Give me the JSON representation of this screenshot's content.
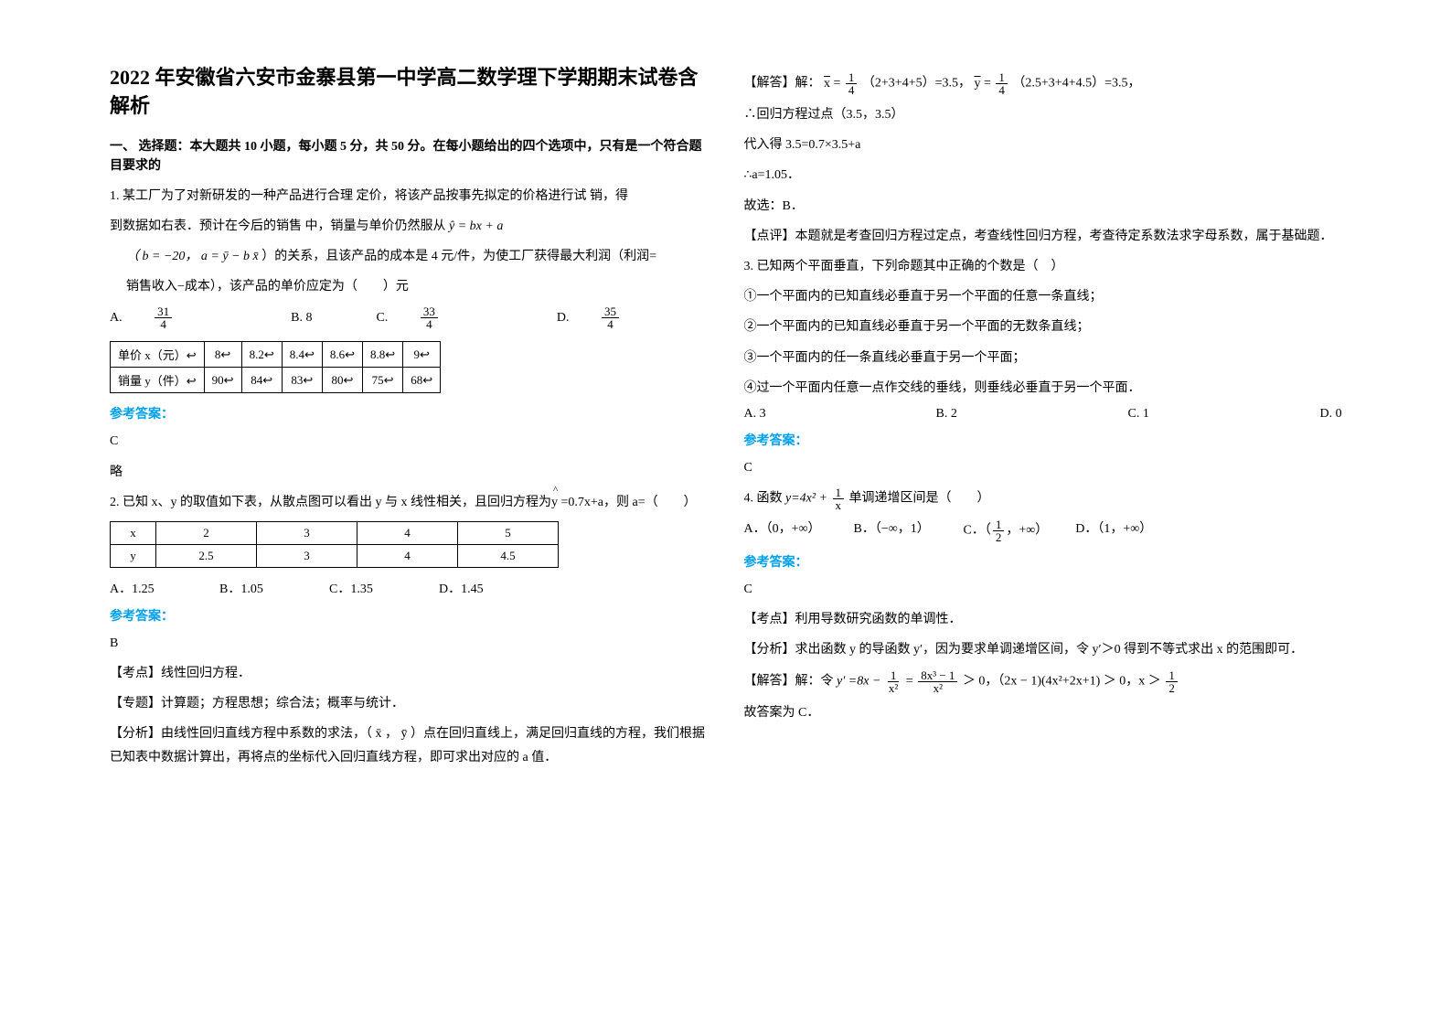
{
  "title": "2022 年安徽省六安市金寨县第一中学高二数学理下学期期末试卷含解析",
  "section1_heading": "一、 选择题：本大题共 10 小题，每小题 5 分，共 50 分。在每小题给出的四个选项中，只有是一个符合题目要求的",
  "q1": {
    "line1": "1. 某工厂为了对新研发的一种产品进行合理           定价，将该产品按事先拟定的价格进行试 销，得",
    "line2": "到数据如右表．预计在今后的销售 中，销量与单价仍然服从",
    "line2b": "ŷ = bx + a",
    "line3a": "（ b = −20，",
    "line3b": "a = ȳ − b x̄",
    "line3c": "）的关系，且该产品的成本是 4 元/件，为使工厂获得最大利润（利润=",
    "line4": "销售收入−成本），该产品的单价应定为（　　）元",
    "optA_label": "A.",
    "optA_num": "31",
    "optA_den": "4",
    "optB": "B. 8",
    "optC_label": "C.",
    "optC_num": "33",
    "optC_den": "4",
    "optD_label": "D.",
    "optD_num": "35",
    "optD_den": "4",
    "table_headers": [
      "单价 x（元）↩",
      "8↩",
      "8.2↩",
      "8.4↩",
      "8.6↩",
      "8.8↩",
      "9↩"
    ],
    "table_row2": [
      "销量 y（件）↩",
      "90↩",
      "84↩",
      "83↩",
      "80↩",
      "75↩",
      "68↩"
    ],
    "answer_label": "参考答案：",
    "answer": "C",
    "note": "略"
  },
  "q2": {
    "stem1": "2. 已知 x、y 的取值如下表，从散点图可以看出 y 与 x 线性相关，且回归方程为",
    "stem1b": " =0.7x+a，则 a=（　　）",
    "table_h": [
      "x",
      "2",
      "3",
      "4",
      "5"
    ],
    "table_r": [
      "y",
      "2.5",
      "3",
      "4",
      "4.5"
    ],
    "optA": "A．1.25",
    "optB": "B．1.05",
    "optC": "C．1.35",
    "optD": "D．1.45",
    "answer_label": "参考答案：",
    "answer": "B",
    "kp": "【考点】线性回归方程．",
    "zt": "【专题】计算题；方程思想；综合法；概率与统计．",
    "fx": "【分析】由线性回归直线方程中系数的求法，（ x̄ ， ȳ ）点在回归直线上，满足回归直线的方程，我们根据已知表中数据计算出，再将点的坐标代入回归直线方程，即可求出对应的 a 值．"
  },
  "right": {
    "sol1a": "【解答】解：",
    "sol1b": "（2+3+4+5）=3.5，",
    "sol1c": "（2.5+3+4+4.5）=3.5，",
    "sol2": "∴回归方程过点（3.5，3.5）",
    "sol3": "代入得 3.5=0.7×3.5+a",
    "sol4": "∴a=1.05．",
    "sol5": "故选：B．",
    "dp": "【点评】本题就是考查回归方程过定点，考查线性回归方程，考查待定系数法求字母系数，属于基础题．"
  },
  "q3": {
    "stem": "3. 已知两个平面垂直，下列命题其中正确的个数是（　）",
    "p1": "①一个平面内的已知直线必垂直于另一个平面的任意一条直线；",
    "p2": "②一个平面内的已知直线必垂直于另一个平面的无数条直线；",
    "p3": "③一个平面内的任一条直线必垂直于另一个平面；",
    "p4": "④过一个平面内任意一点作交线的垂线，则垂线必垂直于另一个平面．",
    "optA": "A. 3",
    "optB": "B. 2",
    "optC": "C. 1",
    "optD": "D. 0",
    "answer_label": "参考答案：",
    "answer": "C"
  },
  "q4": {
    "stem_pre": "4. 函数",
    "stem_math": "y=4x² + ",
    "stem_post": " 单调递增区间是（　　）",
    "optA": "A．（0，+∞）",
    "optB": "B．（−∞，1）",
    "optC_pre": "C．",
    "optC_num": "1",
    "optC_den": "2",
    "optC_post": "，+∞）",
    "optD": "D．（1，+∞）",
    "answer_label": "参考答案：",
    "answer": "C",
    "kp": "【考点】利用导数研究函数的单调性．",
    "fx": "【分析】求出函数 y 的导函数 y′，因为要求单调递增区间，令 y′＞0 得到不等式求出 x 的范围即可．",
    "sol_pre": "【解答】解：令",
    "sol_math1": "y′ =8x − ",
    "sol_eq": " = ",
    "sol_gt": " ＞ 0，（2x − 1)(4x²+2x+1) ＞ 0，x ＞",
    "sol_end": "故答案为 C．"
  }
}
